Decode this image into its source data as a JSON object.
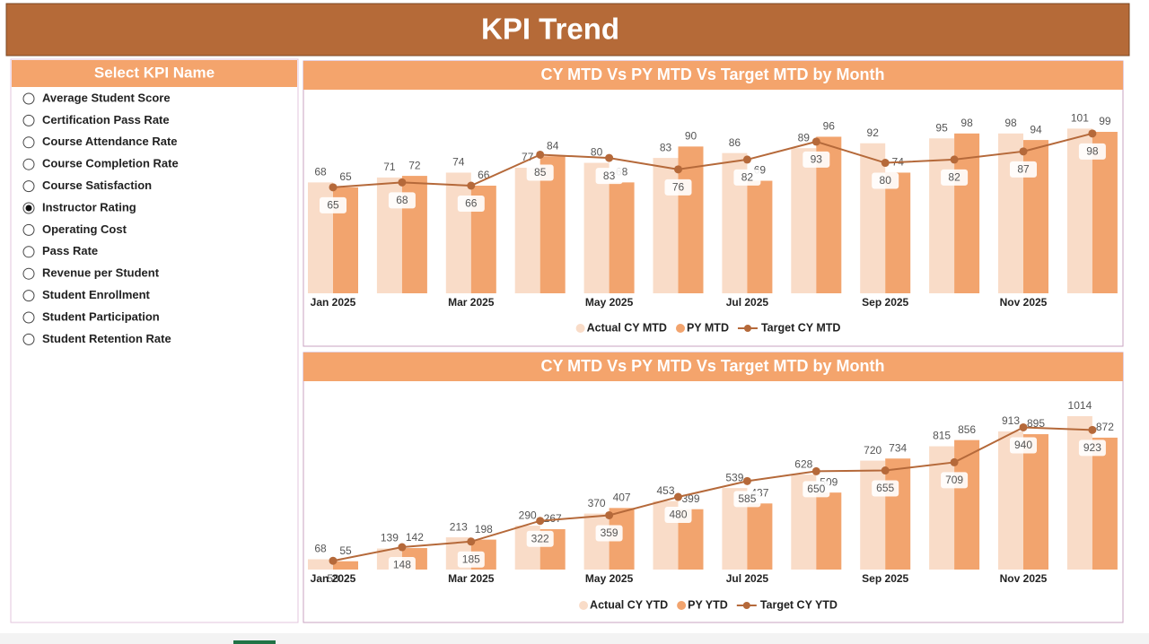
{
  "header": {
    "title": "KPI Trend"
  },
  "slicer": {
    "title": "Select KPI Name",
    "selected_index": 5,
    "items": [
      "Average Student Score",
      "Certification Pass Rate",
      "Course Attendance Rate",
      "Course Completion Rate",
      "Course Satisfaction",
      "Instructor Rating",
      "Operating Cost",
      "Pass Rate",
      "Revenue per Student",
      "Student Enrollment",
      "Student Participation",
      "Student Retention Rate"
    ]
  },
  "chart_data": [
    {
      "type": "combo",
      "title": "CY MTD Vs PY MTD Vs Target MTD by Month",
      "categories": [
        "Jan 2025",
        null,
        "Mar 2025",
        null,
        "May 2025",
        null,
        "Jul 2025",
        null,
        "Sep 2025",
        null,
        "Nov 2025",
        null
      ],
      "ylim": [
        0,
        110
      ],
      "series": [
        {
          "name": "Actual CY MTD",
          "type": "bar",
          "color": "#f9dcc8",
          "values": [
            68,
            71,
            74,
            77,
            80,
            83,
            86,
            89,
            92,
            95,
            98,
            101
          ]
        },
        {
          "name": "PY MTD",
          "type": "bar",
          "color": "#f2a46e",
          "values": [
            65,
            72,
            66,
            84,
            68,
            90,
            69,
            96,
            74,
            98,
            94,
            99
          ]
        },
        {
          "name": "Target CY MTD",
          "type": "line",
          "color": "#b5693a",
          "values": [
            65,
            68,
            66,
            85,
            83,
            76,
            82,
            93,
            80,
            82,
            87,
            98
          ]
        }
      ]
    },
    {
      "type": "combo",
      "title": "CY MTD Vs PY MTD Vs Target MTD by Month",
      "categories": [
        "Jan 2025",
        null,
        "Mar 2025",
        null,
        "May 2025",
        null,
        "Jul 2025",
        null,
        "Sep 2025",
        null,
        "Nov 2025",
        null
      ],
      "ylim": [
        0,
        1100
      ],
      "series": [
        {
          "name": "Actual CY YTD",
          "type": "bar",
          "color": "#f9dcc8",
          "values": [
            68,
            139,
            213,
            290,
            370,
            453,
            539,
            628,
            720,
            815,
            913,
            1014
          ]
        },
        {
          "name": "PY YTD",
          "type": "bar",
          "color": "#f2a46e",
          "values": [
            55,
            142,
            198,
            267,
            407,
            399,
            437,
            509,
            734,
            856,
            895,
            872
          ]
        },
        {
          "name": "Target CY YTD",
          "type": "line",
          "color": "#b5693a",
          "values": [
            58,
            148,
            185,
            322,
            359,
            480,
            585,
            650,
            655,
            709,
            940,
            923
          ]
        }
      ]
    }
  ]
}
